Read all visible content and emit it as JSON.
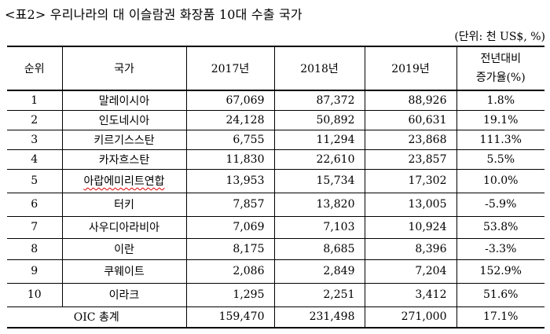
{
  "title": "<표2> 우리나라의 대 이슬람권 화장품 10대 수출 국가",
  "unit": "(단위: 천 US$, %)",
  "headers": {
    "rank": "순위",
    "country": "국가",
    "y2017": "2017년",
    "y2018": "2018년",
    "y2019": "2019년",
    "change_line1": "전년대비",
    "change_line2": "증가율(%)"
  },
  "rows": [
    {
      "rank": "1",
      "country": "말레이시아",
      "y2017": "67,069",
      "y2018": "87,372",
      "y2019": "88,926",
      "change": "1.8%"
    },
    {
      "rank": "2",
      "country": "인도네시아",
      "y2017": "24,128",
      "y2018": "50,892",
      "y2019": "60,631",
      "change": "19.1%"
    },
    {
      "rank": "3",
      "country": "키르기스스탄",
      "y2017": "6,755",
      "y2018": "11,294",
      "y2019": "23,868",
      "change": "111.3%"
    },
    {
      "rank": "4",
      "country": "카자흐스탄",
      "y2017": "11,830",
      "y2018": "22,610",
      "y2019": "23,857",
      "change": "5.5%"
    },
    {
      "rank": "5",
      "country": "아랍에미리트연합",
      "y2017": "13,953",
      "y2018": "15,734",
      "y2019": "17,302",
      "change": "10.0%"
    },
    {
      "rank": "6",
      "country": "터키",
      "y2017": "7,857",
      "y2018": "13,820",
      "y2019": "13,005",
      "change": "-5.9%"
    },
    {
      "rank": "7",
      "country": "사우디아라비아",
      "y2017": "7,069",
      "y2018": "7,103",
      "y2019": "10,924",
      "change": "53.8%"
    },
    {
      "rank": "8",
      "country": "이란",
      "y2017": "8,175",
      "y2018": "8,685",
      "y2019": "8,396",
      "change": "-3.3%"
    },
    {
      "rank": "9",
      "country": "쿠웨이트",
      "y2017": "2,086",
      "y2018": "2,849",
      "y2019": "7,204",
      "change": "152.9%"
    },
    {
      "rank": "10",
      "country": "이라크",
      "y2017": "1,295",
      "y2018": "2,251",
      "y2019": "3,412",
      "change": "51.6%"
    }
  ],
  "total": {
    "label": "OIC 총계",
    "y2017": "159,470",
    "y2018": "231,498",
    "y2019": "271,000",
    "change": "17.1%"
  }
}
